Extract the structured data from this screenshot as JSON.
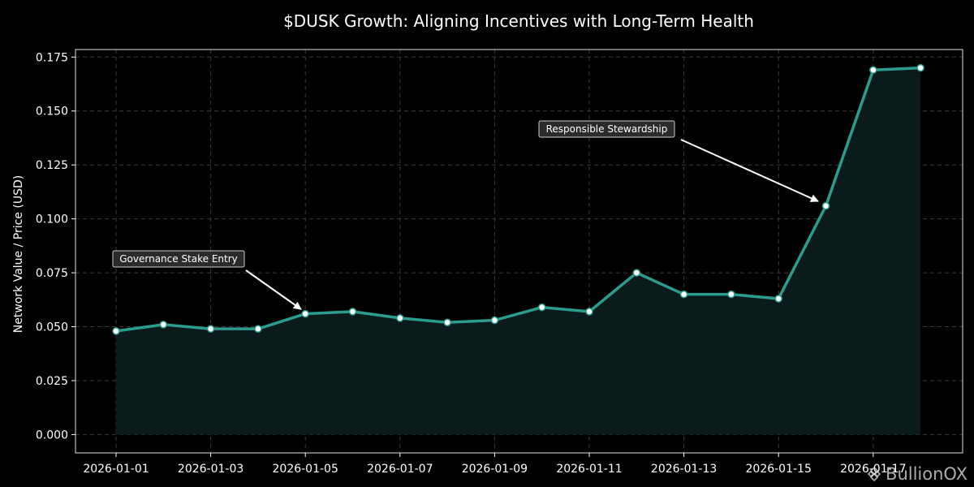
{
  "chart_data": {
    "type": "area",
    "title": "$DUSK Growth: Aligning Incentives with Long-Term Health",
    "xlabel": "",
    "ylabel": "Network Value / Price (USD)",
    "x": [
      "2026-01-01",
      "2026-01-02",
      "2026-01-03",
      "2026-01-04",
      "2026-01-05",
      "2026-01-06",
      "2026-01-07",
      "2026-01-08",
      "2026-01-09",
      "2026-01-10",
      "2026-01-11",
      "2026-01-12",
      "2026-01-13",
      "2026-01-14",
      "2026-01-15",
      "2026-01-16",
      "2026-01-17",
      "2026-01-18"
    ],
    "series": [
      {
        "name": "$DUSK",
        "values": [
          0.048,
          0.051,
          0.049,
          0.049,
          0.056,
          0.057,
          0.054,
          0.052,
          0.053,
          0.059,
          0.057,
          0.075,
          0.065,
          0.065,
          0.063,
          0.106,
          0.169,
          0.17
        ]
      }
    ],
    "ylim": [
      -0.0085,
      0.1785
    ],
    "yticks": [
      0.0,
      0.025,
      0.05,
      0.075,
      0.1,
      0.125,
      0.15,
      0.175
    ],
    "ytick_labels": [
      "0.000",
      "0.025",
      "0.050",
      "0.075",
      "0.100",
      "0.125",
      "0.150",
      "0.175"
    ],
    "xticks": [
      "2026-01-01",
      "2026-01-03",
      "2026-01-05",
      "2026-01-07",
      "2026-01-09",
      "2026-01-11",
      "2026-01-13",
      "2026-01-15",
      "2026-01-17"
    ],
    "grid": true,
    "annotations": [
      {
        "text": "Governance Stake Entry",
        "x": "2026-01-05",
        "y": 0.056
      },
      {
        "text": "Responsible Stewardship",
        "x": "2026-01-16",
        "y": 0.106
      }
    ],
    "colors": {
      "line": "#2a9d8f",
      "fill": "#0b1a1a",
      "marker_fill": "#ffffff",
      "background": "#000000"
    }
  },
  "watermark": {
    "text": "BullionOX",
    "icon": "binance-diamond-icon"
  }
}
